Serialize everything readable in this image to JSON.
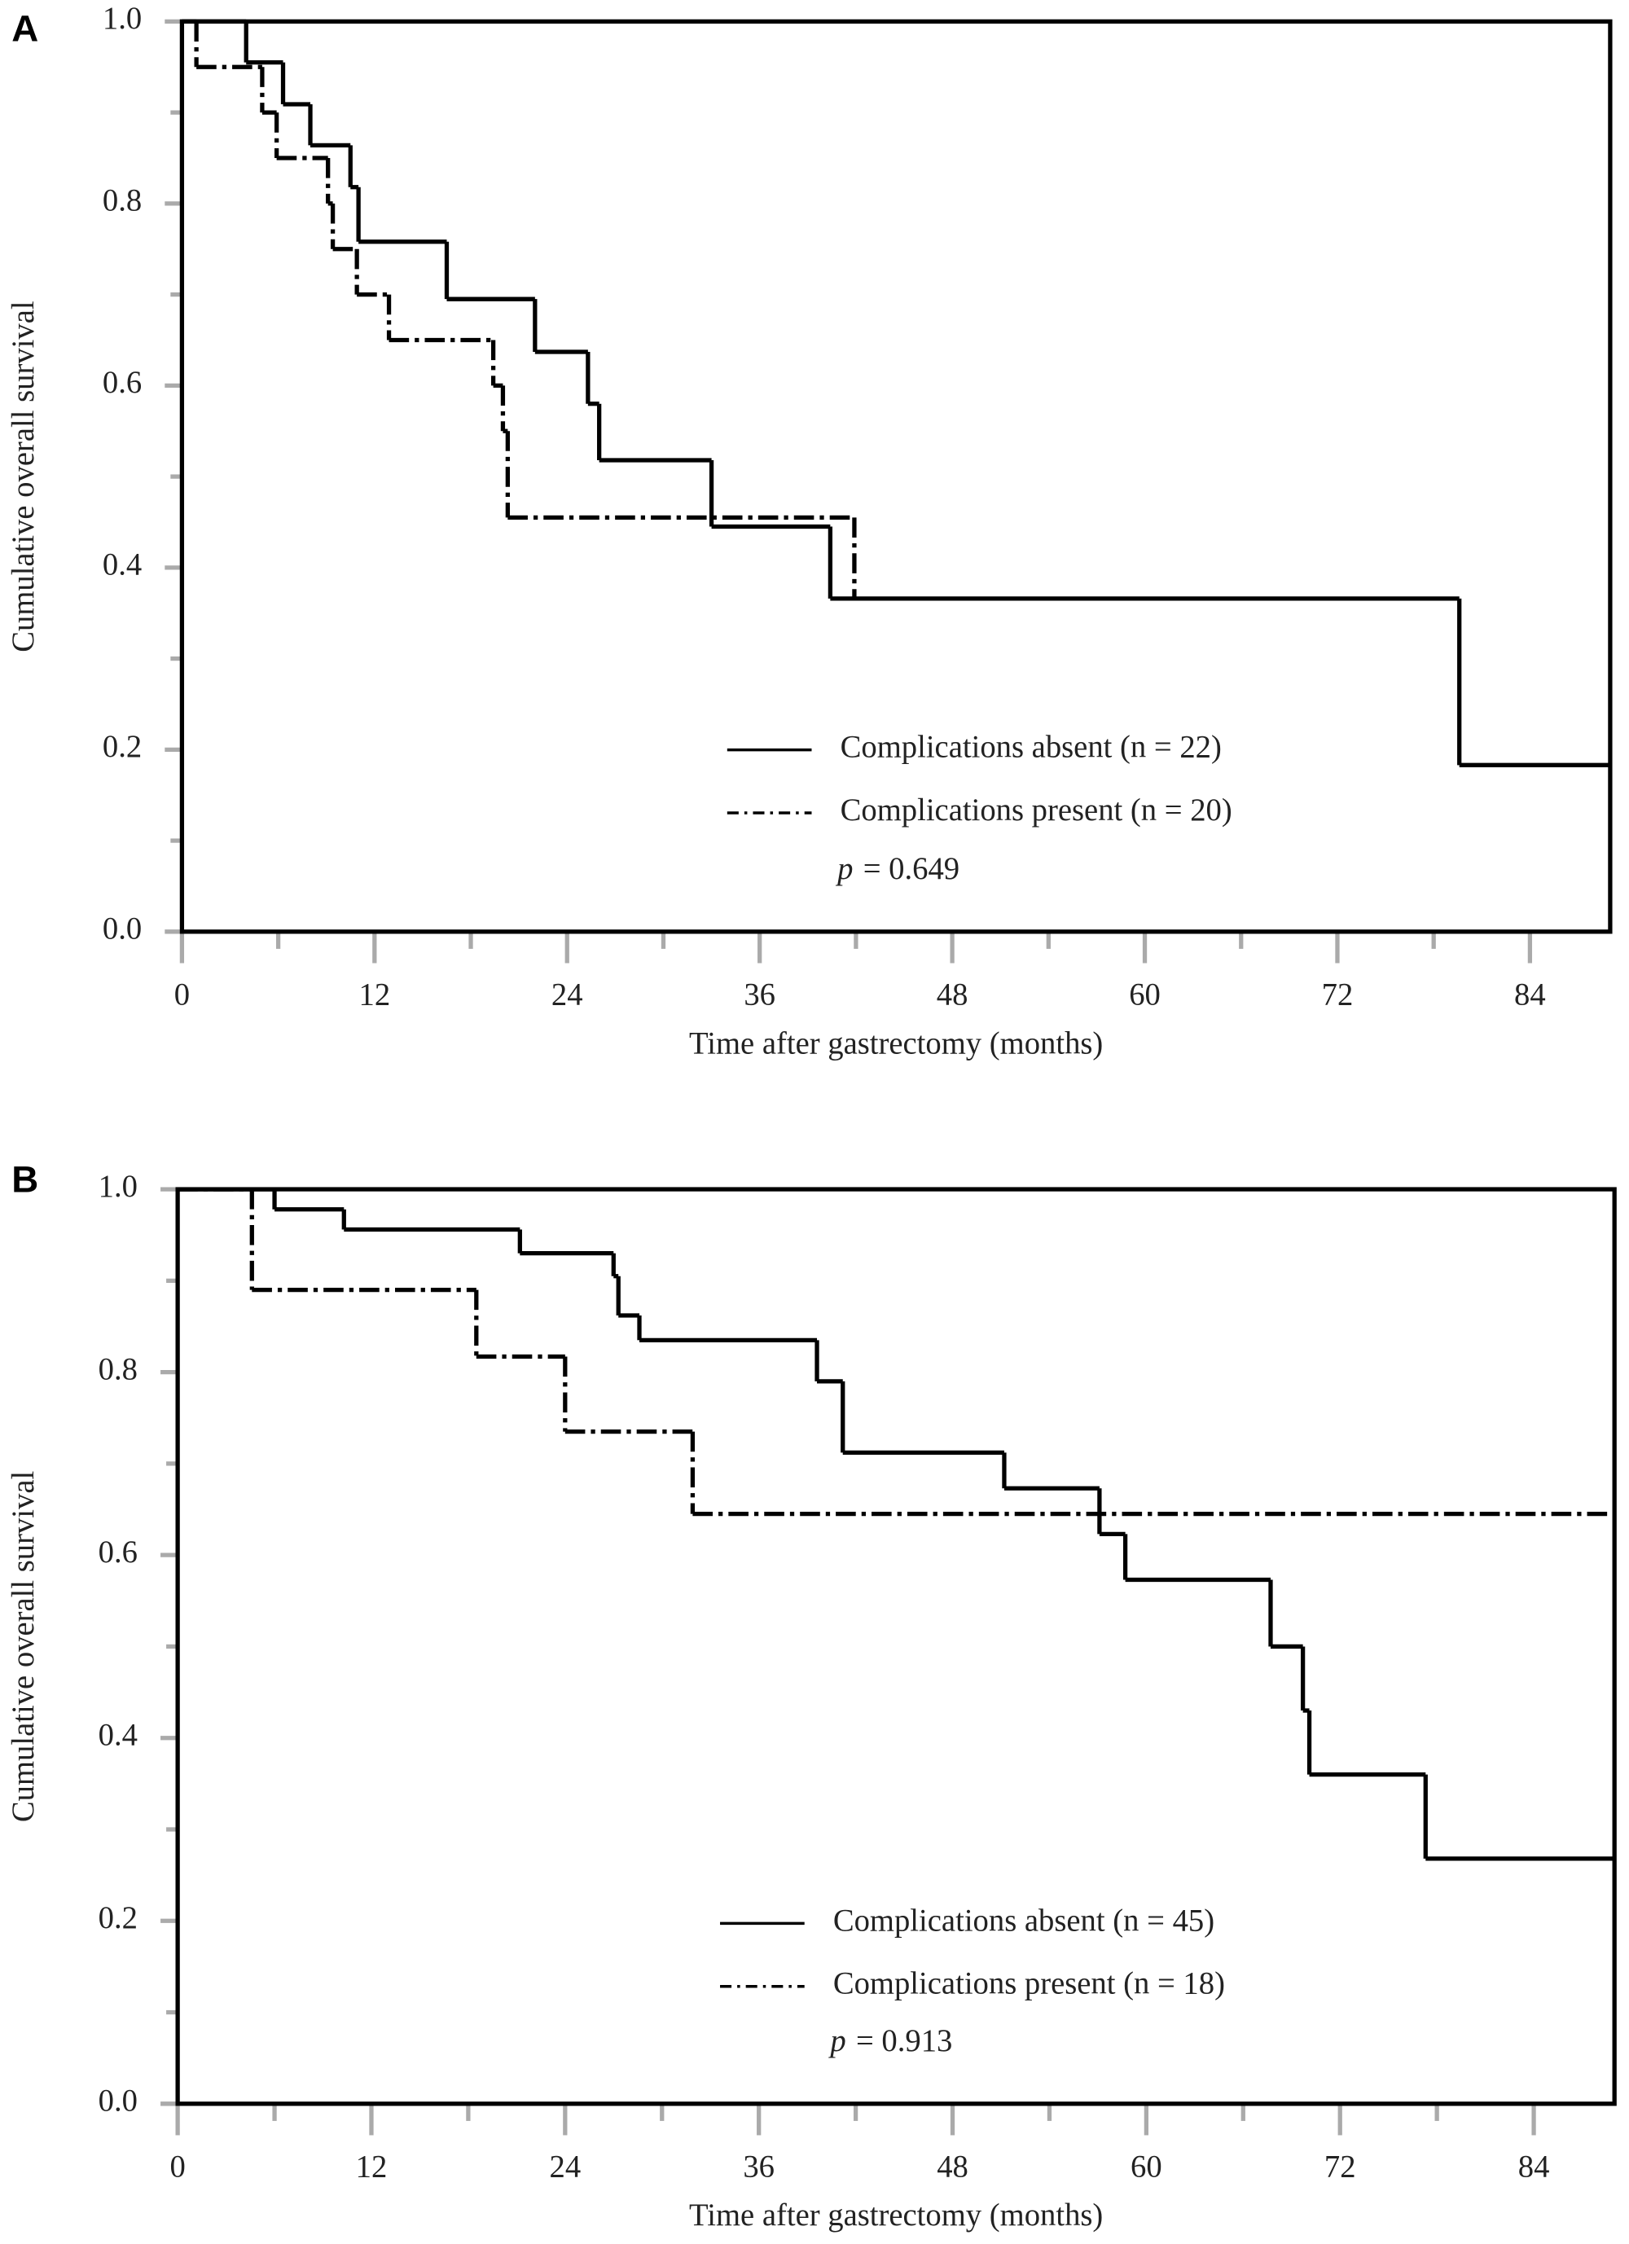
{
  "chart_data": [
    {
      "type": "line",
      "step": true,
      "panel": "A",
      "x_label": "Time after gastrectomy (months)",
      "y_label": "Cumulative overall survival",
      "xlim": [
        0,
        89
      ],
      "ylim": [
        0,
        1
      ],
      "xticks": [
        0,
        12,
        24,
        36,
        48,
        60,
        72,
        84
      ],
      "yticks": [
        {
          "value": 0,
          "label": "0.0"
        },
        0.2,
        0.4,
        0.6,
        0.8,
        {
          "value": 1,
          "label": "1.0"
        }
      ],
      "series": [
        {
          "name": "Complications absent (n = 22)",
          "color": "#000000",
          "dash": "solid",
          "x": [
            0,
            4,
            6.3,
            8,
            10.5,
            11,
            16.5,
            22,
            25.3,
            26,
            33,
            40.4,
            79.6,
            89
          ],
          "values": [
            1,
            0.955,
            0.909,
            0.864,
            0.818,
            0.758,
            0.695,
            0.637,
            0.58,
            0.518,
            0.445,
            0.366,
            0.183,
            0.183
          ]
        },
        {
          "name": "Complications present (n = 20)",
          "color": "#000000",
          "dash": "dashdot",
          "x": [
            0,
            0.9,
            5,
            5.9,
            9.1,
            9.4,
            10.9,
            12.9,
            19.4,
            20,
            20.3,
            41.9
          ],
          "values": [
            1,
            0.95,
            0.9,
            0.85,
            0.8,
            0.75,
            0.7,
            0.65,
            0.6,
            0.55,
            0.455,
            0.365
          ]
        }
      ],
      "p_symbol": "p",
      "p_value": "= 0.649"
    },
    {
      "type": "line",
      "step": true,
      "panel": "B",
      "x_label": "Time after gastrectomy (months)",
      "y_label": "Cumulative overall survival",
      "xlim": [
        0,
        89
      ],
      "ylim": [
        0,
        1
      ],
      "xticks": [
        0,
        12,
        24,
        36,
        48,
        60,
        72,
        84
      ],
      "yticks": [
        {
          "value": 0,
          "label": "0.0"
        },
        0.2,
        0.4,
        0.6,
        0.8,
        {
          "value": 1,
          "label": "1.0"
        }
      ],
      "series": [
        {
          "name": "Complications absent (n = 45)",
          "color": "#000000",
          "dash": "solid",
          "x": [
            0,
            6,
            10.3,
            21.2,
            27,
            27.3,
            28.6,
            39.6,
            41.2,
            51.2,
            57.1,
            58.7,
            67.7,
            69.7,
            70.1,
            77.3,
            89
          ],
          "values": [
            1,
            0.978,
            0.956,
            0.93,
            0.905,
            0.862,
            0.835,
            0.79,
            0.712,
            0.673,
            0.623,
            0.573,
            0.5,
            0.43,
            0.36,
            0.268,
            0.268
          ]
        },
        {
          "name": "Complications present (n = 18)",
          "color": "#000000",
          "dash": "dashdot",
          "x": [
            0,
            4.6,
            18.5,
            24,
            31.9,
            89
          ],
          "values": [
            1,
            0.89,
            0.817,
            0.735,
            0.645,
            0.645
          ]
        }
      ],
      "p_symbol": "p",
      "p_value": "= 0.913"
    }
  ]
}
